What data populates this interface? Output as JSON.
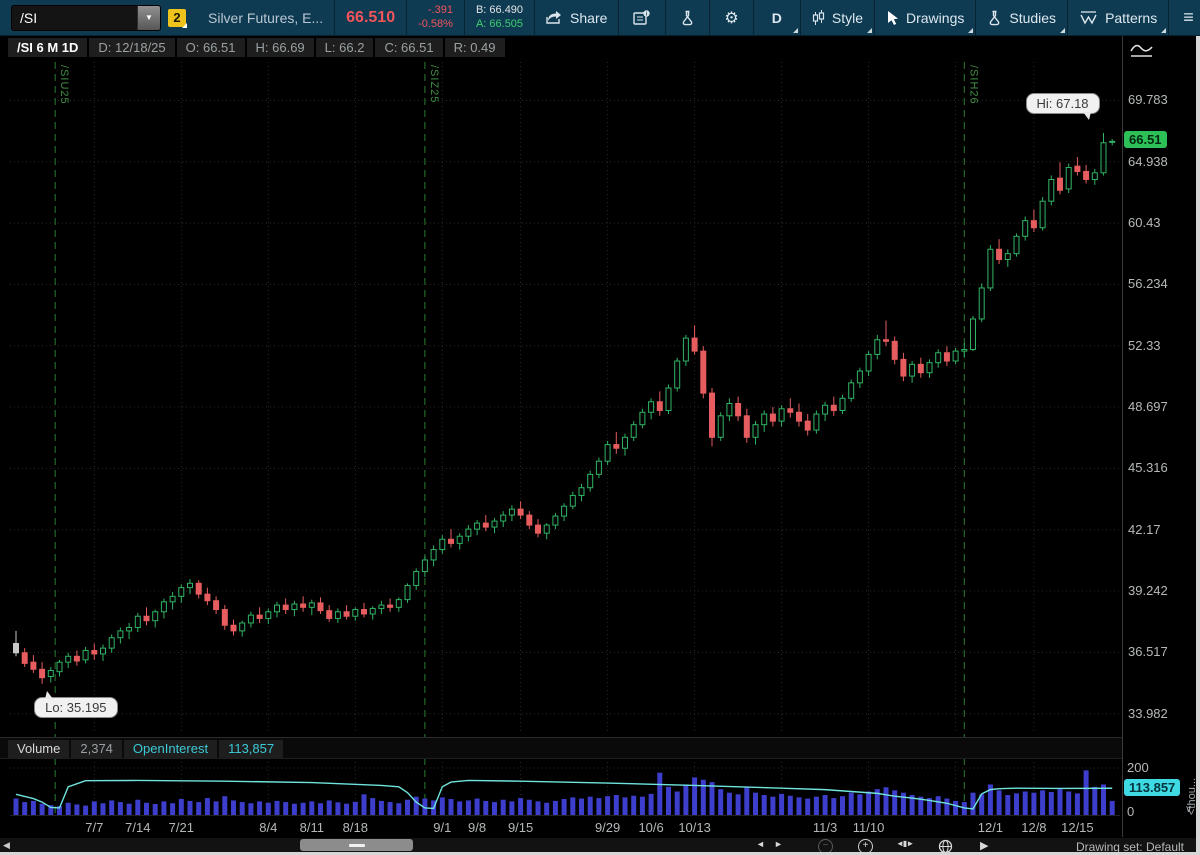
{
  "toolbar": {
    "symbol": "/SI",
    "badge_count": "2",
    "description": "Silver Futures, E...",
    "last_price": "66.510",
    "change": "-.391",
    "change_pct": "-0.58%",
    "bid_label": "B: 66.490",
    "ask_label": "A: 66.505",
    "share_label": "Share",
    "timeframe_label": "D",
    "style_label": "Style",
    "drawings_label": "Drawings",
    "studies_label": "Studies",
    "patterns_label": "Patterns"
  },
  "ohlc_bar": {
    "title": "/SI 6 M 1D",
    "fields": [
      "D: 12/18/25",
      "O: 66.51",
      "H: 66.69",
      "L: 66.2",
      "C: 66.51",
      "R: 0.49"
    ]
  },
  "volume_bar": {
    "volume_label": "Volume",
    "volume_value": "2,374",
    "oi_label": "OpenInterest",
    "oi_value": "113,857"
  },
  "badges": {
    "last_close": "66.51",
    "oi_axis": "113.857"
  },
  "annotations": {
    "hi_text": "Hi: 67.18",
    "hi_value": 67.18,
    "hi_index": 125,
    "lo_text": "Lo: 35.195",
    "lo_value": 35.195,
    "lo_index": 3
  },
  "axis": {
    "vol_top": "200",
    "vol_bottom": "0",
    "vol_unit": "<thou..."
  },
  "bottom_bar": {
    "drawing_set": "Drawing set: Default"
  },
  "chart_data": {
    "type": "candlestick",
    "symbol": "/SI",
    "timeframe": "6 M 1D",
    "price_scale": "log",
    "price_ticks": [
      69.783,
      64.938,
      60.43,
      56.234,
      52.33,
      48.697,
      45.316,
      42.17,
      39.242,
      36.517,
      33.982
    ],
    "price_range_top": 73.0,
    "price_range_bottom": 33.3,
    "x_labels": [
      {
        "label": "7/7",
        "i": 9
      },
      {
        "label": "7/14",
        "i": 14
      },
      {
        "label": "7/21",
        "i": 19
      },
      {
        "label": "8/4",
        "i": 29
      },
      {
        "label": "8/11",
        "i": 34
      },
      {
        "label": "8/18",
        "i": 39
      },
      {
        "label": "9/1",
        "i": 49
      },
      {
        "label": "9/8",
        "i": 53
      },
      {
        "label": "9/15",
        "i": 58
      },
      {
        "label": "9/29",
        "i": 68
      },
      {
        "label": "10/6",
        "i": 73
      },
      {
        "label": "10/13",
        "i": 78
      },
      {
        "label": "11/3",
        "i": 93
      },
      {
        "label": "11/10",
        "i": 98
      },
      {
        "label": "12/1",
        "i": 112
      },
      {
        "label": "12/8",
        "i": 117
      },
      {
        "label": "12/15",
        "i": 122
      }
    ],
    "grid_indices": [
      9,
      19,
      29,
      39,
      49,
      58,
      68,
      78,
      88,
      98,
      108,
      117
    ],
    "roll_markers": [
      {
        "label": "/SIU25",
        "i": 4.5
      },
      {
        "label": "/SIZ25",
        "i": 47
      },
      {
        "label": "/SIH26",
        "i": 109
      }
    ],
    "first_candle_gray": true,
    "candles": [
      [
        36.9,
        37.45,
        36.35,
        36.5
      ],
      [
        36.5,
        36.7,
        35.9,
        36.05
      ],
      [
        36.1,
        36.4,
        35.65,
        35.8
      ],
      [
        35.8,
        36.1,
        35.195,
        35.45
      ],
      [
        35.5,
        35.9,
        35.25,
        35.75
      ],
      [
        35.7,
        36.2,
        35.5,
        36.1
      ],
      [
        36.1,
        36.5,
        35.85,
        36.35
      ],
      [
        36.35,
        36.6,
        35.95,
        36.15
      ],
      [
        36.2,
        36.75,
        36.05,
        36.6
      ],
      [
        36.6,
        36.9,
        36.2,
        36.45
      ],
      [
        36.45,
        36.85,
        36.15,
        36.7
      ],
      [
        36.7,
        37.3,
        36.5,
        37.15
      ],
      [
        37.15,
        37.6,
        36.9,
        37.45
      ],
      [
        37.45,
        37.8,
        37.1,
        37.6
      ],
      [
        37.6,
        38.25,
        37.4,
        38.1
      ],
      [
        38.1,
        38.5,
        37.7,
        37.9
      ],
      [
        37.9,
        38.4,
        37.6,
        38.3
      ],
      [
        38.3,
        38.9,
        38.0,
        38.75
      ],
      [
        38.75,
        39.2,
        38.4,
        39.0
      ],
      [
        39.0,
        39.55,
        38.7,
        39.4
      ],
      [
        39.4,
        39.8,
        39.1,
        39.6
      ],
      [
        39.6,
        39.75,
        38.9,
        39.1
      ],
      [
        39.1,
        39.4,
        38.6,
        38.8
      ],
      [
        38.8,
        39.0,
        38.2,
        38.4
      ],
      [
        38.4,
        38.6,
        37.5,
        37.7
      ],
      [
        37.7,
        37.95,
        37.25,
        37.45
      ],
      [
        37.45,
        37.9,
        37.2,
        37.8
      ],
      [
        37.8,
        38.3,
        37.6,
        38.15
      ],
      [
        38.15,
        38.5,
        37.8,
        38.0
      ],
      [
        38.0,
        38.45,
        37.75,
        38.3
      ],
      [
        38.3,
        38.75,
        38.05,
        38.6
      ],
      [
        38.6,
        38.9,
        38.2,
        38.4
      ],
      [
        38.4,
        38.8,
        38.1,
        38.65
      ],
      [
        38.65,
        39.0,
        38.3,
        38.5
      ],
      [
        38.5,
        38.85,
        38.15,
        38.7
      ],
      [
        38.7,
        38.95,
        38.2,
        38.35
      ],
      [
        38.35,
        38.6,
        37.85,
        38.0
      ],
      [
        38.0,
        38.45,
        37.8,
        38.3
      ],
      [
        38.3,
        38.6,
        37.95,
        38.1
      ],
      [
        38.1,
        38.5,
        37.9,
        38.4
      ],
      [
        38.4,
        38.7,
        38.05,
        38.2
      ],
      [
        38.2,
        38.55,
        37.95,
        38.45
      ],
      [
        38.45,
        38.8,
        38.2,
        38.6
      ],
      [
        38.6,
        38.9,
        38.3,
        38.5
      ],
      [
        38.5,
        38.95,
        38.3,
        38.85
      ],
      [
        38.85,
        39.6,
        38.7,
        39.5
      ],
      [
        39.5,
        40.3,
        39.3,
        40.15
      ],
      [
        40.15,
        40.9,
        39.9,
        40.7
      ],
      [
        40.7,
        41.4,
        40.4,
        41.2
      ],
      [
        41.2,
        41.9,
        41.0,
        41.7
      ],
      [
        41.7,
        42.2,
        41.3,
        41.5
      ],
      [
        41.5,
        42.0,
        41.2,
        41.85
      ],
      [
        41.85,
        42.4,
        41.6,
        42.2
      ],
      [
        42.2,
        42.65,
        41.9,
        42.5
      ],
      [
        42.5,
        42.9,
        42.1,
        42.3
      ],
      [
        42.3,
        42.75,
        42.0,
        42.6
      ],
      [
        42.6,
        43.1,
        42.3,
        42.9
      ],
      [
        42.9,
        43.4,
        42.6,
        43.2
      ],
      [
        43.2,
        43.6,
        42.7,
        42.9
      ],
      [
        42.9,
        43.1,
        42.2,
        42.4
      ],
      [
        42.4,
        42.7,
        41.8,
        42.0
      ],
      [
        42.0,
        42.5,
        41.7,
        42.4
      ],
      [
        42.4,
        43.0,
        42.2,
        42.85
      ],
      [
        42.85,
        43.5,
        42.6,
        43.35
      ],
      [
        43.35,
        44.1,
        43.2,
        43.9
      ],
      [
        43.9,
        44.5,
        43.6,
        44.3
      ],
      [
        44.3,
        45.2,
        44.1,
        45.0
      ],
      [
        45.0,
        45.9,
        44.8,
        45.7
      ],
      [
        45.7,
        46.8,
        45.5,
        46.6
      ],
      [
        46.6,
        47.3,
        46.1,
        46.4
      ],
      [
        46.4,
        47.2,
        46.0,
        47.0
      ],
      [
        47.0,
        47.9,
        46.8,
        47.7
      ],
      [
        47.7,
        48.6,
        47.5,
        48.4
      ],
      [
        48.4,
        49.2,
        48.0,
        49.0
      ],
      [
        49.0,
        49.6,
        48.2,
        48.5
      ],
      [
        48.5,
        50.0,
        48.3,
        49.8
      ],
      [
        49.8,
        51.6,
        49.6,
        51.4
      ],
      [
        51.4,
        53.0,
        51.1,
        52.8
      ],
      [
        52.8,
        53.6,
        51.8,
        52.0
      ],
      [
        52.0,
        52.3,
        49.2,
        49.5
      ],
      [
        49.5,
        49.8,
        46.5,
        47.0
      ],
      [
        47.0,
        48.4,
        46.8,
        48.2
      ],
      [
        48.2,
        49.2,
        47.9,
        48.9
      ],
      [
        48.9,
        49.3,
        47.9,
        48.2
      ],
      [
        48.2,
        48.6,
        46.7,
        47.0
      ],
      [
        47.0,
        47.9,
        46.6,
        47.7
      ],
      [
        47.7,
        48.5,
        47.3,
        48.3
      ],
      [
        48.3,
        48.7,
        47.6,
        47.9
      ],
      [
        47.9,
        48.8,
        47.6,
        48.6
      ],
      [
        48.6,
        49.2,
        48.1,
        48.4
      ],
      [
        48.4,
        48.9,
        47.6,
        47.9
      ],
      [
        47.9,
        48.3,
        47.1,
        47.4
      ],
      [
        47.4,
        48.5,
        47.2,
        48.3
      ],
      [
        48.3,
        49.0,
        47.9,
        48.8
      ],
      [
        48.8,
        49.3,
        48.2,
        48.5
      ],
      [
        48.5,
        49.4,
        48.3,
        49.2
      ],
      [
        49.2,
        50.3,
        49.0,
        50.1
      ],
      [
        50.1,
        51.0,
        49.8,
        50.8
      ],
      [
        50.8,
        52.0,
        50.5,
        51.8
      ],
      [
        51.8,
        53.0,
        51.5,
        52.7
      ],
      [
        52.7,
        53.9,
        52.3,
        52.6
      ],
      [
        52.6,
        52.9,
        51.2,
        51.5
      ],
      [
        51.5,
        51.9,
        50.2,
        50.5
      ],
      [
        50.5,
        51.4,
        50.1,
        51.2
      ],
      [
        51.2,
        51.6,
        50.4,
        50.7
      ],
      [
        50.7,
        51.5,
        50.4,
        51.3
      ],
      [
        51.3,
        52.1,
        51.0,
        51.9
      ],
      [
        51.9,
        52.3,
        51.1,
        51.4
      ],
      [
        51.4,
        52.2,
        51.2,
        52.0
      ],
      [
        52.0,
        52.5,
        51.6,
        52.1
      ],
      [
        52.1,
        54.2,
        52.0,
        54.0
      ],
      [
        54.0,
        56.3,
        53.8,
        56.0
      ],
      [
        56.0,
        58.9,
        55.8,
        58.6
      ],
      [
        58.6,
        59.3,
        57.6,
        57.9
      ],
      [
        57.9,
        58.6,
        57.4,
        58.3
      ],
      [
        58.3,
        59.7,
        58.1,
        59.5
      ],
      [
        59.5,
        60.9,
        59.2,
        60.6
      ],
      [
        60.6,
        61.4,
        59.8,
        60.1
      ],
      [
        60.1,
        62.3,
        59.9,
        62.0
      ],
      [
        62.0,
        63.9,
        61.7,
        63.6
      ],
      [
        63.7,
        64.9,
        62.5,
        62.8
      ],
      [
        62.9,
        64.8,
        62.6,
        64.5
      ],
      [
        64.6,
        65.3,
        63.9,
        64.2
      ],
      [
        64.2,
        64.7,
        63.3,
        63.6
      ],
      [
        63.6,
        64.4,
        63.2,
        64.1
      ],
      [
        64.1,
        67.18,
        63.9,
        66.4
      ],
      [
        66.51,
        66.69,
        66.2,
        66.51
      ]
    ],
    "volume_axis_max": 200,
    "volume": [
      70,
      55,
      60,
      48,
      42,
      38,
      52,
      45,
      40,
      58,
      50,
      62,
      55,
      48,
      65,
      52,
      47,
      58,
      50,
      68,
      60,
      55,
      72,
      58,
      80,
      62,
      55,
      50,
      58,
      52,
      60,
      55,
      48,
      52,
      58,
      50,
      62,
      54,
      48,
      56,
      88,
      72,
      60,
      55,
      50,
      65,
      78,
      70,
      62,
      75,
      68,
      58,
      62,
      70,
      60,
      55,
      65,
      58,
      72,
      65,
      58,
      52,
      60,
      68,
      75,
      70,
      78,
      72,
      80,
      85,
      75,
      82,
      78,
      90,
      180,
      120,
      100,
      130,
      160,
      150,
      140,
      110,
      95,
      88,
      120,
      95,
      85,
      78,
      90,
      82,
      75,
      70,
      78,
      85,
      72,
      80,
      95,
      88,
      100,
      110,
      118,
      105,
      95,
      85,
      78,
      72,
      80,
      70,
      60,
      55,
      95,
      88,
      130,
      105,
      85,
      92,
      100,
      95,
      105,
      98,
      110,
      100,
      92,
      190,
      120,
      130,
      60
    ],
    "open_interest": [
      [
        0,
        88
      ],
      [
        2,
        70
      ],
      [
        3,
        55
      ],
      [
        4,
        32
      ],
      [
        5,
        30
      ],
      [
        6,
        120
      ],
      [
        8,
        146
      ],
      [
        14,
        147
      ],
      [
        24,
        144
      ],
      [
        34,
        138
      ],
      [
        42,
        126
      ],
      [
        44,
        120
      ],
      [
        45,
        95
      ],
      [
        46,
        55
      ],
      [
        47,
        30
      ],
      [
        48,
        28
      ],
      [
        49,
        120
      ],
      [
        50,
        140
      ],
      [
        52,
        147
      ],
      [
        58,
        144
      ],
      [
        68,
        136
      ],
      [
        78,
        126
      ],
      [
        88,
        114
      ],
      [
        93,
        108
      ],
      [
        96,
        100
      ],
      [
        99,
        92
      ],
      [
        101,
        80
      ],
      [
        103,
        72
      ],
      [
        105,
        62
      ],
      [
        107,
        50
      ],
      [
        109,
        30
      ],
      [
        110,
        26
      ],
      [
        111,
        90
      ],
      [
        112,
        108
      ],
      [
        113,
        112
      ],
      [
        115,
        114
      ],
      [
        120,
        113
      ],
      [
        126,
        113.857
      ]
    ],
    "colors": {
      "up": "#2fb364",
      "down": "#e75d5f",
      "first": "#c9c9c9",
      "volume": "#3e3ecd",
      "oi_line": "#6fe3dc",
      "roll": "#2c7a33",
      "grid": "#2a2a2a",
      "last_badge": "#2cc057",
      "oi_badge": "#3fd9e4",
      "price_down_text": "#f2545b",
      "ask_green": "#3ecf70"
    }
  }
}
